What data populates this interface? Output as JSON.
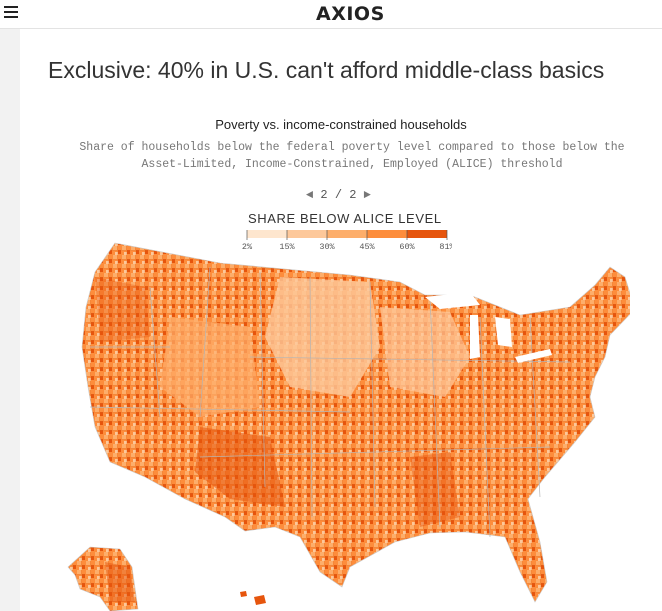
{
  "header": {
    "brand": "AXIOS",
    "menu_icon": "hamburger-menu-icon"
  },
  "article": {
    "headline": "Exclusive: 40% in U.S. can't afford middle-class basics"
  },
  "chart": {
    "title": "Poverty vs. income-constrained households",
    "subtitle_line1": "Share of households below the federal poverty level compared to those below the",
    "subtitle_line2": "Asset-Limited, Income-Constrained, Employed (ALICE) threshold",
    "pager": {
      "prev_icon": "triangle-left-icon",
      "next_icon": "triangle-right-icon",
      "current": "2",
      "separator": "/",
      "total": "2"
    },
    "legend_title": "SHARE BELOW ALICE LEVEL",
    "legend": {
      "ticks": [
        "2%",
        "15%",
        "30%",
        "45%",
        "60%",
        "81%"
      ],
      "colors": [
        "#fee6ce",
        "#fdc89a",
        "#fdae6b",
        "#fd8d3c",
        "#e6550d"
      ]
    }
  },
  "chart_data": {
    "type": "choropleth",
    "title": "Poverty vs. income-constrained households",
    "legend_title": "SHARE BELOW ALICE LEVEL",
    "bins": [
      [
        2,
        15
      ],
      [
        15,
        30
      ],
      [
        30,
        45
      ],
      [
        45,
        60
      ],
      [
        60,
        81
      ]
    ],
    "bin_colors": [
      "#fee6ce",
      "#fdc89a",
      "#fdae6b",
      "#fd8d3c",
      "#e6550d"
    ]
  }
}
